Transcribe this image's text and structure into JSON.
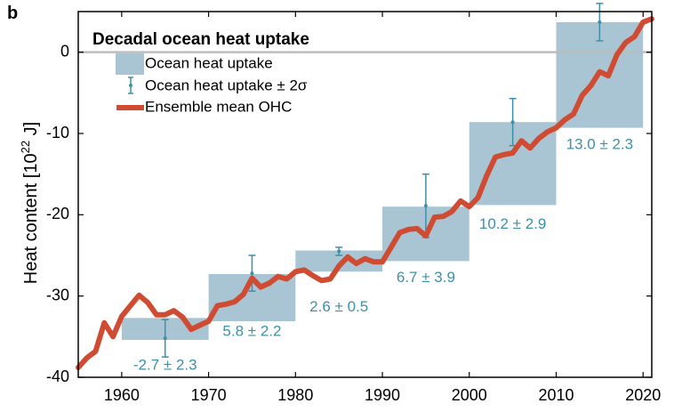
{
  "panel_label": "b",
  "colors": {
    "box": "#a9c5d3",
    "errorbar": "#3e8fa8",
    "line": "#cf4b31",
    "annotation": "#3e8fa8",
    "zero_line": "#bdbdbd",
    "axis": "#000000"
  },
  "chart_data": {
    "type": "line",
    "title": "Decadal ocean heat uptake",
    "xlabel": "",
    "ylabel_prefix": "Heat content [10",
    "ylabel_exponent": "22",
    "ylabel_suffix": " J]",
    "xlim": [
      1955,
      2021
    ],
    "ylim": [
      -40,
      5
    ],
    "xticks": [
      1960,
      1970,
      1980,
      1990,
      2000,
      2010,
      2020
    ],
    "yticks": [
      -40,
      -30,
      -20,
      -10,
      0
    ],
    "legend": {
      "position": "top-left",
      "entries": [
        {
          "label": "Ocean heat uptake",
          "kind": "patch"
        },
        {
          "label": "Ocean heat uptake ± 2σ",
          "kind": "errorbar"
        },
        {
          "label": "Ensemble mean OHC",
          "kind": "line"
        }
      ]
    },
    "decades": [
      {
        "start": 1960,
        "end": 1970,
        "ohc_start": -32.7,
        "ohc_end": -35.4,
        "uptake": "-2.7 ± 2.3",
        "err_center": -35.2,
        "err_low": -37.5,
        "err_high": -32.9,
        "label_y": -38.6
      },
      {
        "start": 1970,
        "end": 1980,
        "ohc_start": -33.1,
        "ohc_end": -27.3,
        "uptake": "5.8 ± 2.2",
        "err_center": -27.2,
        "err_low": -29.4,
        "err_high": -25.0,
        "label_y": -34.4
      },
      {
        "start": 1980,
        "end": 1990,
        "ohc_start": -27.0,
        "ohc_end": -24.4,
        "uptake": "2.6 ± 0.5",
        "err_center": -24.5,
        "err_low": -25.0,
        "err_high": -24.0,
        "label_y": -31.4
      },
      {
        "start": 1990,
        "end": 2000,
        "ohc_start": -25.7,
        "ohc_end": -19.0,
        "uptake": "6.7 ± 3.9",
        "err_center": -18.9,
        "err_low": -22.8,
        "err_high": -15.0,
        "label_y": -27.8
      },
      {
        "start": 2000,
        "end": 2010,
        "ohc_start": -18.8,
        "ohc_end": -8.6,
        "uptake": "10.2 ± 2.9",
        "err_center": -8.6,
        "err_low": -11.5,
        "err_high": -5.7,
        "label_y": -21.2
      },
      {
        "start": 2010,
        "end": 2020,
        "ohc_start": -9.3,
        "ohc_end": 3.7,
        "uptake": "13.0 ± 2.3",
        "err_center": 3.7,
        "err_low": 1.4,
        "err_high": 6.0,
        "label_y": -11.4
      }
    ],
    "series": [
      {
        "name": "Ensemble mean OHC",
        "x": [
          1955,
          1956,
          1957,
          1958,
          1959,
          1960,
          1961,
          1962,
          1963,
          1964,
          1965,
          1966,
          1967,
          1968,
          1969,
          1970,
          1971,
          1972,
          1973,
          1974,
          1975,
          1976,
          1977,
          1978,
          1979,
          1980,
          1981,
          1982,
          1983,
          1984,
          1985,
          1986,
          1987,
          1988,
          1989,
          1990,
          1991,
          1992,
          1993,
          1994,
          1995,
          1996,
          1997,
          1998,
          1999,
          2000,
          2001,
          2002,
          2003,
          2004,
          2005,
          2006,
          2007,
          2008,
          2009,
          2010,
          2011,
          2012,
          2013,
          2014,
          2015,
          2016,
          2017,
          2018,
          2019,
          2020,
          2021
        ],
        "y": [
          -38.8,
          -37.6,
          -36.8,
          -33.3,
          -35.0,
          -32.5,
          -31.2,
          -29.9,
          -30.8,
          -32.3,
          -32.3,
          -31.8,
          -32.6,
          -34.1,
          -33.6,
          -33.1,
          -31.2,
          -31.0,
          -30.7,
          -29.8,
          -27.8,
          -28.9,
          -28.4,
          -27.6,
          -27.9,
          -27.0,
          -26.8,
          -27.5,
          -28.1,
          -27.9,
          -26.3,
          -25.2,
          -26.0,
          -25.4,
          -25.8,
          -25.8,
          -24.0,
          -22.2,
          -21.8,
          -21.7,
          -22.6,
          -20.3,
          -20.2,
          -19.6,
          -18.3,
          -19.0,
          -17.9,
          -15.2,
          -12.9,
          -12.6,
          -12.4,
          -10.9,
          -11.8,
          -10.6,
          -9.8,
          -9.3,
          -8.3,
          -7.6,
          -5.3,
          -4.1,
          -2.4,
          -2.9,
          -0.3,
          1.2,
          1.9,
          3.7,
          4.1
        ]
      }
    ]
  }
}
